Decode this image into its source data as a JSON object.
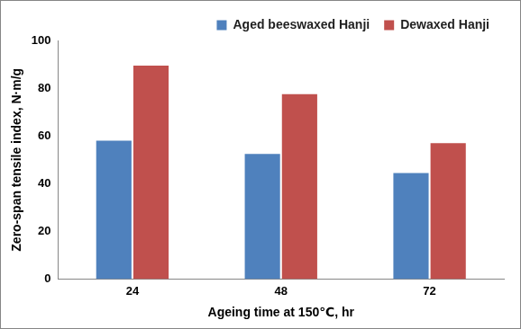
{
  "chart_data": {
    "type": "bar",
    "x_label": "Ageing time at 150℃, hr",
    "y_label": "Zero-span tensile index, N·m/g",
    "categories": [
      "24",
      "48",
      "72"
    ],
    "series": [
      {
        "name": "Aged beeswaxed Hanji",
        "color": "#4f81bd",
        "values": [
          58,
          52.5,
          44.5
        ]
      },
      {
        "name": "Dewaxed Hanji",
        "color": "#c0504d",
        "values": [
          89.5,
          77.5,
          57
        ]
      }
    ],
    "ylim": [
      0,
      100
    ],
    "yticks": [
      0,
      20,
      40,
      60,
      80,
      100
    ],
    "grid": false,
    "legend": "top"
  }
}
